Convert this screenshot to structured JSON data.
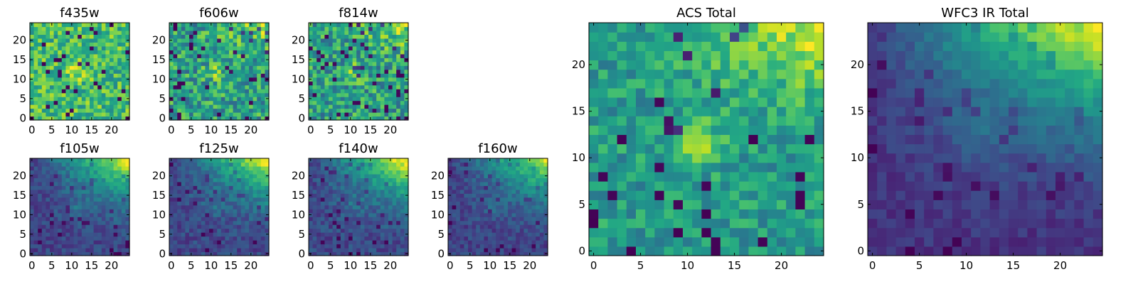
{
  "chart_data": [
    {
      "type": "heatmap",
      "title": "f435w",
      "x_ticks": [
        0,
        5,
        10,
        15,
        20
      ],
      "y_ticks": [
        0,
        5,
        10,
        15,
        20
      ],
      "grid_size": 25,
      "colormap": "viridis",
      "seed": 11,
      "pattern": "noise_bright"
    },
    {
      "type": "heatmap",
      "title": "f606w",
      "x_ticks": [
        0,
        5,
        10,
        15,
        20
      ],
      "y_ticks": [
        0,
        5,
        10,
        15,
        20
      ],
      "grid_size": 25,
      "colormap": "viridis",
      "seed": 12,
      "pattern": "noise_mid"
    },
    {
      "type": "heatmap",
      "title": "f814w",
      "x_ticks": [
        0,
        5,
        10,
        15,
        20
      ],
      "y_ticks": [
        0,
        5,
        10,
        15,
        20
      ],
      "grid_size": 25,
      "colormap": "viridis",
      "seed": 13,
      "pattern": "noise_mid"
    },
    {
      "type": "heatmap",
      "title": "f105w",
      "x_ticks": [
        0,
        5,
        10,
        15,
        20
      ],
      "y_ticks": [
        0,
        5,
        10,
        15,
        20
      ],
      "grid_size": 25,
      "colormap": "viridis",
      "seed": 14,
      "pattern": "ir"
    },
    {
      "type": "heatmap",
      "title": "f125w",
      "x_ticks": [
        0,
        5,
        10,
        15,
        20
      ],
      "y_ticks": [
        0,
        5,
        10,
        15,
        20
      ],
      "grid_size": 25,
      "colormap": "viridis",
      "seed": 15,
      "pattern": "ir"
    },
    {
      "type": "heatmap",
      "title": "f140w",
      "x_ticks": [
        0,
        5,
        10,
        15,
        20
      ],
      "y_ticks": [
        0,
        5,
        10,
        15,
        20
      ],
      "grid_size": 25,
      "colormap": "viridis",
      "seed": 16,
      "pattern": "ir"
    },
    {
      "type": "heatmap",
      "title": "f160w",
      "x_ticks": [
        0,
        5,
        10,
        15,
        20
      ],
      "y_ticks": [
        0,
        5,
        10,
        15,
        20
      ],
      "grid_size": 25,
      "colormap": "viridis",
      "seed": 17,
      "pattern": "ir"
    },
    {
      "type": "heatmap",
      "title": "ACS Total",
      "x_ticks": [
        0,
        5,
        10,
        15,
        20
      ],
      "y_ticks": [
        0,
        5,
        10,
        15,
        20
      ],
      "grid_size": 25,
      "colormap": "viridis",
      "seed": 18,
      "pattern": "acs"
    },
    {
      "type": "heatmap",
      "title": "WFC3 IR Total",
      "x_ticks": [
        0,
        5,
        10,
        15,
        20
      ],
      "y_ticks": [
        0,
        5,
        10,
        15,
        20
      ],
      "grid_size": 25,
      "colormap": "viridis",
      "seed": 19,
      "pattern": "ir_smooth"
    }
  ]
}
